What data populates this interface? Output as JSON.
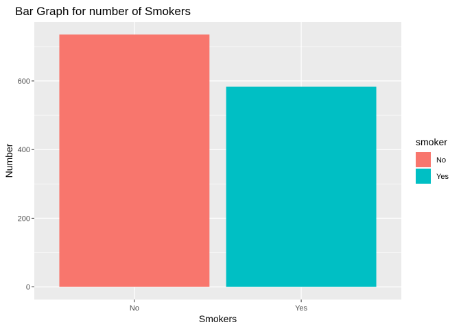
{
  "chart_data": {
    "type": "bar",
    "title": "Bar Graph for number of Smokers",
    "xlabel": "Smokers",
    "ylabel": "Number",
    "categories": [
      "No",
      "Yes"
    ],
    "values": [
      735,
      583
    ],
    "colors": [
      "#F8766D",
      "#00BFC4"
    ],
    "ylim": [
      -36.75,
      771.75
    ],
    "yticks": [
      0,
      200,
      400,
      600
    ],
    "ytick_labels": [
      "0",
      "200",
      "400",
      "600"
    ],
    "grid": true,
    "legend": {
      "title": "smoker",
      "placement": "right",
      "entries": [
        "No",
        "Yes"
      ]
    },
    "panel_background": "#EBEBEB",
    "gridline_color": "#FFFFFF"
  }
}
